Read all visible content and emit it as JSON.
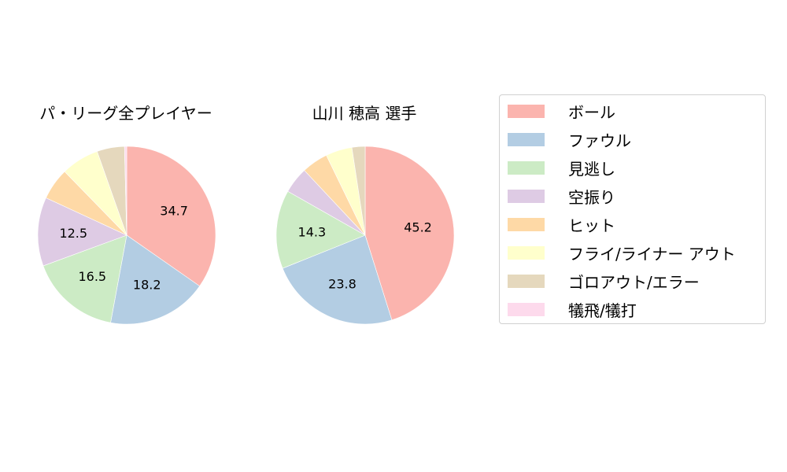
{
  "legend": {
    "items": [
      {
        "label": "ボール",
        "color": "#fbb4ae"
      },
      {
        "label": "ファウル",
        "color": "#b3cde3"
      },
      {
        "label": "見逃し",
        "color": "#ccebc5"
      },
      {
        "label": "空振り",
        "color": "#decbe4"
      },
      {
        "label": "ヒット",
        "color": "#fed9a6"
      },
      {
        "label": "フライ/ライナー アウト",
        "color": "#ffffcc"
      },
      {
        "label": "ゴロアウト/エラー",
        "color": "#e5d8bd"
      },
      {
        "label": "犠飛/犠打",
        "color": "#fddaec"
      }
    ]
  },
  "charts": {
    "left": {
      "title": "パ・リーグ全プレイヤー"
    },
    "right": {
      "title": "山川 穂高  選手"
    }
  },
  "chart_data": [
    {
      "type": "pie",
      "title": "パ・リーグ全プレイヤー",
      "categories": [
        "ボール",
        "ファウル",
        "見逃し",
        "空振り",
        "ヒット",
        "フライ/ライナー アウト",
        "ゴロアウト/エラー",
        "犠飛/犠打"
      ],
      "values": [
        34.7,
        18.2,
        16.5,
        12.5,
        5.8,
        6.9,
        5.0,
        0.4
      ],
      "labels_shown": [
        "34.7",
        "18.2",
        "16.5",
        "12.5",
        "",
        "",
        "",
        ""
      ],
      "start_angle": "top, clockwise",
      "colors": [
        "#fbb4ae",
        "#b3cde3",
        "#ccebc5",
        "#decbe4",
        "#fed9a6",
        "#ffffcc",
        "#e5d8bd",
        "#fddaec"
      ]
    },
    {
      "type": "pie",
      "title": "山川 穂高  選手",
      "categories": [
        "ボール",
        "ファウル",
        "見逃し",
        "空振り",
        "ヒット",
        "フライ/ライナー アウト",
        "ゴロアウト/エラー",
        "犠飛/犠打"
      ],
      "values": [
        45.2,
        23.8,
        14.3,
        4.8,
        4.8,
        4.8,
        2.4,
        0.0
      ],
      "labels_shown": [
        "45.2",
        "23.8",
        "14.3",
        "",
        "",
        "",
        "",
        ""
      ],
      "start_angle": "top, clockwise",
      "colors": [
        "#fbb4ae",
        "#b3cde3",
        "#ccebc5",
        "#decbe4",
        "#fed9a6",
        "#ffffcc",
        "#e5d8bd",
        "#fddaec"
      ]
    }
  ]
}
